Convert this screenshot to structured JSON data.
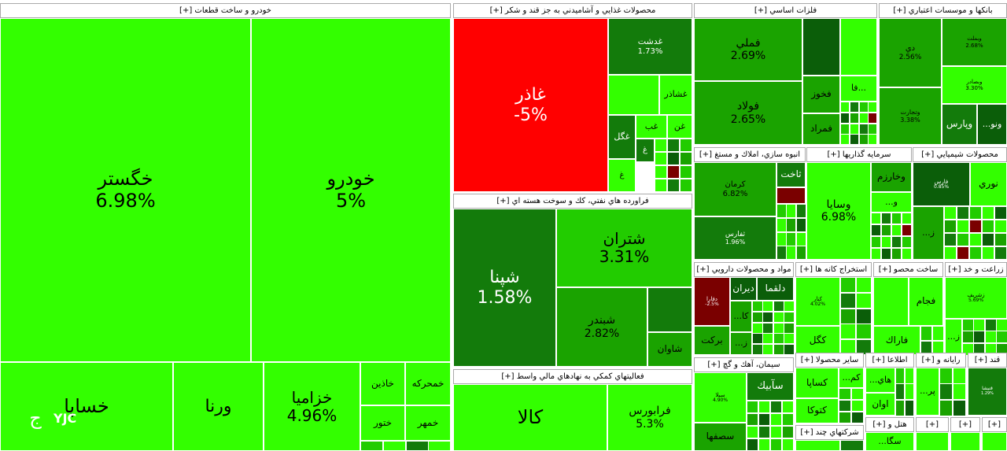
{
  "chart_data": {
    "type": "treemap",
    "colors": {
      "bright_up": "#33ff00",
      "up": "#22cc00",
      "mid_up": "#1aa300",
      "dark_up": "#137b0b",
      "very_dark_up": "#0b5e09",
      "flat": "#5cb800",
      "down": "#ff0000",
      "dark_down": "#7a0000",
      "header_bg": "#ffffff"
    },
    "sectors": [
      {
        "name": "خودرو و ساخت قطعات [+]",
        "stocks": [
          {
            "name": "خگستر",
            "change": "6.98%"
          },
          {
            "name": "خودرو",
            "change": "5%"
          },
          {
            "name": "خساپا",
            "change": ""
          },
          {
            "name": "ورنا",
            "change": ""
          },
          {
            "name": "خزاميا",
            "change": "4.96%"
          },
          {
            "name": "خمحركه",
            "change": ""
          },
          {
            "name": "خاذين",
            "change": ""
          },
          {
            "name": "خمهر",
            "change": ""
          },
          {
            "name": "ختور",
            "change": ""
          }
        ]
      },
      {
        "name": "محصولات غذايي و آشاميدني به جز قند و شكر [+]",
        "stocks": [
          {
            "name": "غاذر",
            "change": "-5%"
          },
          {
            "name": "غدشت",
            "change": "1.73%"
          },
          {
            "name": "غشاذر",
            "change": ""
          },
          {
            "name": "غگل",
            "change": ""
          },
          {
            "name": "غب",
            "change": ""
          },
          {
            "name": "غن",
            "change": ""
          },
          {
            "name": "غ",
            "change": ""
          },
          {
            "name": "غ",
            "change": ""
          }
        ]
      },
      {
        "name": "فراورده هاي نفتي، كك و سوخت هسته اي [+]",
        "stocks": [
          {
            "name": "شپنا",
            "change": "1.58%"
          },
          {
            "name": "شتران",
            "change": "3.31%"
          },
          {
            "name": "شبندر",
            "change": "2.82%"
          },
          {
            "name": "شاوان",
            "change": ""
          }
        ]
      },
      {
        "name": "فعاليتهاي كمكي به نهادهاي مالي واسط [+]",
        "stocks": [
          {
            "name": "كالا",
            "change": ""
          },
          {
            "name": "فرابورس",
            "change": "5.3%"
          }
        ]
      },
      {
        "name": "فلزات اساسي [+]",
        "stocks": [
          {
            "name": "فملي",
            "change": "2.69%"
          },
          {
            "name": "فولاد",
            "change": "2.65%"
          },
          {
            "name": "فخوز",
            "change": ""
          },
          {
            "name": "فمراد",
            "change": ""
          },
          {
            "name": "فا...",
            "change": ""
          }
        ]
      },
      {
        "name": "بانكها و موسسات اعتباري [+]",
        "stocks": [
          {
            "name": "دي",
            "change": "2.56%"
          },
          {
            "name": "وتجارت",
            "change": "3.38%"
          },
          {
            "name": "وپارس",
            "change": ""
          },
          {
            "name": "...ونو",
            "change": ""
          },
          {
            "name": "وبملت",
            "change": "2.68%"
          },
          {
            "name": "وبصادر",
            "change": "3.30%"
          }
        ]
      },
      {
        "name": "انبوه سازي، املاك و مستغ [+]",
        "stocks": [
          {
            "name": "كرمان",
            "change": "6.82%"
          },
          {
            "name": "ثاخت",
            "change": ""
          },
          {
            "name": "ثفارس",
            "change": "1.96%"
          }
        ]
      },
      {
        "name": "سرمايه گذاريها [+]",
        "stocks": [
          {
            "name": "وسايا",
            "change": "6.98%"
          },
          {
            "name": "وخارزم",
            "change": ""
          },
          {
            "name": "...و",
            "change": ""
          }
        ]
      },
      {
        "name": "محصولات شيميايي [+]",
        "stocks": [
          {
            "name": "نوري",
            "change": ""
          },
          {
            "name": "فارس",
            "change": "0.85%"
          },
          {
            "name": "...ز",
            "change": ""
          }
        ]
      },
      {
        "name": "مواد و محصولات دارويي [+]",
        "stocks": [
          {
            "name": "دلقما",
            "change": ""
          },
          {
            "name": "ديران",
            "change": ""
          },
          {
            "name": "بركت",
            "change": ""
          },
          {
            "name": "...كا",
            "change": ""
          },
          {
            "name": "...ز",
            "change": ""
          },
          {
            "name": "دفارا",
            "change": "-2.5%"
          }
        ]
      },
      {
        "name": "استخراج كانه ها [+]",
        "stocks": [
          {
            "name": "كگل",
            "change": ""
          },
          {
            "name": "كنار",
            "change": "4.02%"
          }
        ]
      },
      {
        "name": "ساخت محصو [+]",
        "stocks": [
          {
            "name": "فجام",
            "change": ""
          },
          {
            "name": "فاراك",
            "change": ""
          }
        ]
      },
      {
        "name": "زراعت و خد [+]",
        "stocks": [
          {
            "name": "زشريف",
            "change": "5.69%"
          },
          {
            "name": "...ز",
            "change": ""
          }
        ]
      },
      {
        "name": "سيمان، آهك و گچ [+]",
        "stocks": [
          {
            "name": "سآبيك",
            "change": ""
          },
          {
            "name": "سصفها",
            "change": ""
          },
          {
            "name": "سيلا",
            "change": "4.90%"
          }
        ]
      },
      {
        "name": "ساير محصولا [+]",
        "stocks": [
          {
            "name": "كساپا",
            "change": ""
          },
          {
            "name": "كتوكا",
            "change": ""
          },
          {
            "name": "...كم",
            "change": ""
          }
        ]
      },
      {
        "name": "اطلاعا [+]",
        "stocks": [
          {
            "name": "...هاي",
            "change": ""
          },
          {
            "name": "اوان",
            "change": ""
          }
        ]
      },
      {
        "name": "رايانه و [+]",
        "stocks": [
          {
            "name": "...پر",
            "change": ""
          }
        ]
      },
      {
        "name": "قند [+]",
        "stocks": [
          {
            "name": "قنيشا",
            "change": "1.29%"
          }
        ]
      },
      {
        "name": "شركتهاي چند [+]",
        "stocks": []
      },
      {
        "name": "هتل و [+]",
        "stocks": [
          {
            "name": "...سگا",
            "change": ""
          }
        ]
      },
      {
        "name": "[+]",
        "stocks": []
      },
      {
        "name": "[+]",
        "stocks": []
      },
      {
        "name": "[+]",
        "stocks": []
      }
    ]
  },
  "watermark": {
    "text": "YJC",
    "mark": "ج"
  }
}
